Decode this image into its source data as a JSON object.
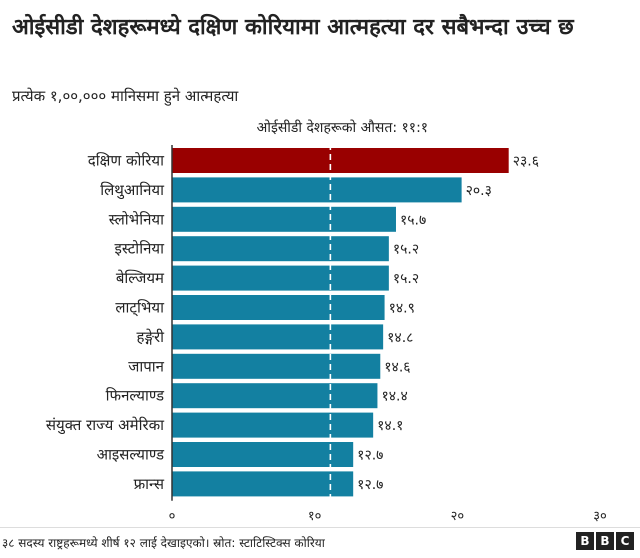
{
  "title": "ओईसीडी देशहरूमध्ये दक्षिण कोरियामा आत्महत्या दर सबैभन्दा उच्च छ",
  "subtitle": "प्रत्येक १,००,००० मानिसमा हुने आत्महत्या",
  "footer": {
    "note": "३८ सदस्य राष्ट्रहरूमध्ये शीर्ष १२ लाई देखाइएको। स्रोत: स्टाटिस्टिक्स कोरिया",
    "logo": [
      "B",
      "B",
      "C"
    ]
  },
  "colors": {
    "highlight": "#990000",
    "bar": "#1380A1",
    "average_line": "#ffffff",
    "axis": "#333333"
  },
  "chart_data": {
    "type": "bar",
    "orientation": "horizontal",
    "categories": [
      "दक्षिण कोरिया",
      "लिथुआनिया",
      "स्लोभेनिया",
      "इस्टोनिया",
      "बेल्जियम",
      "लाट्भिया",
      "हङ्गेरी",
      "जापान",
      "फिनल्याण्ड",
      "संयुक्त राज्य अमेरिका",
      "आइसल्याण्ड",
      "फ्रान्स"
    ],
    "values": [
      23.6,
      20.3,
      15.7,
      15.2,
      15.2,
      14.9,
      14.8,
      14.6,
      14.4,
      14.1,
      12.7,
      12.7
    ],
    "value_labels": [
      "२३.६",
      "२०.३",
      "१५.७",
      "१५.२",
      "१५.२",
      "१४.९",
      "१४.८",
      "१४.६",
      "१४.४",
      "१४.१",
      "१२.७",
      "१२.७"
    ],
    "highlight_index": 0,
    "average": {
      "value": 11.1,
      "label": "ओईसीडी देशहरूको औसत: ११:१"
    },
    "xlim": [
      0,
      30
    ],
    "xticks": [
      0,
      10,
      20,
      30
    ],
    "xtick_labels": [
      "०",
      "१०",
      "२०",
      "३०"
    ],
    "grid": false
  }
}
